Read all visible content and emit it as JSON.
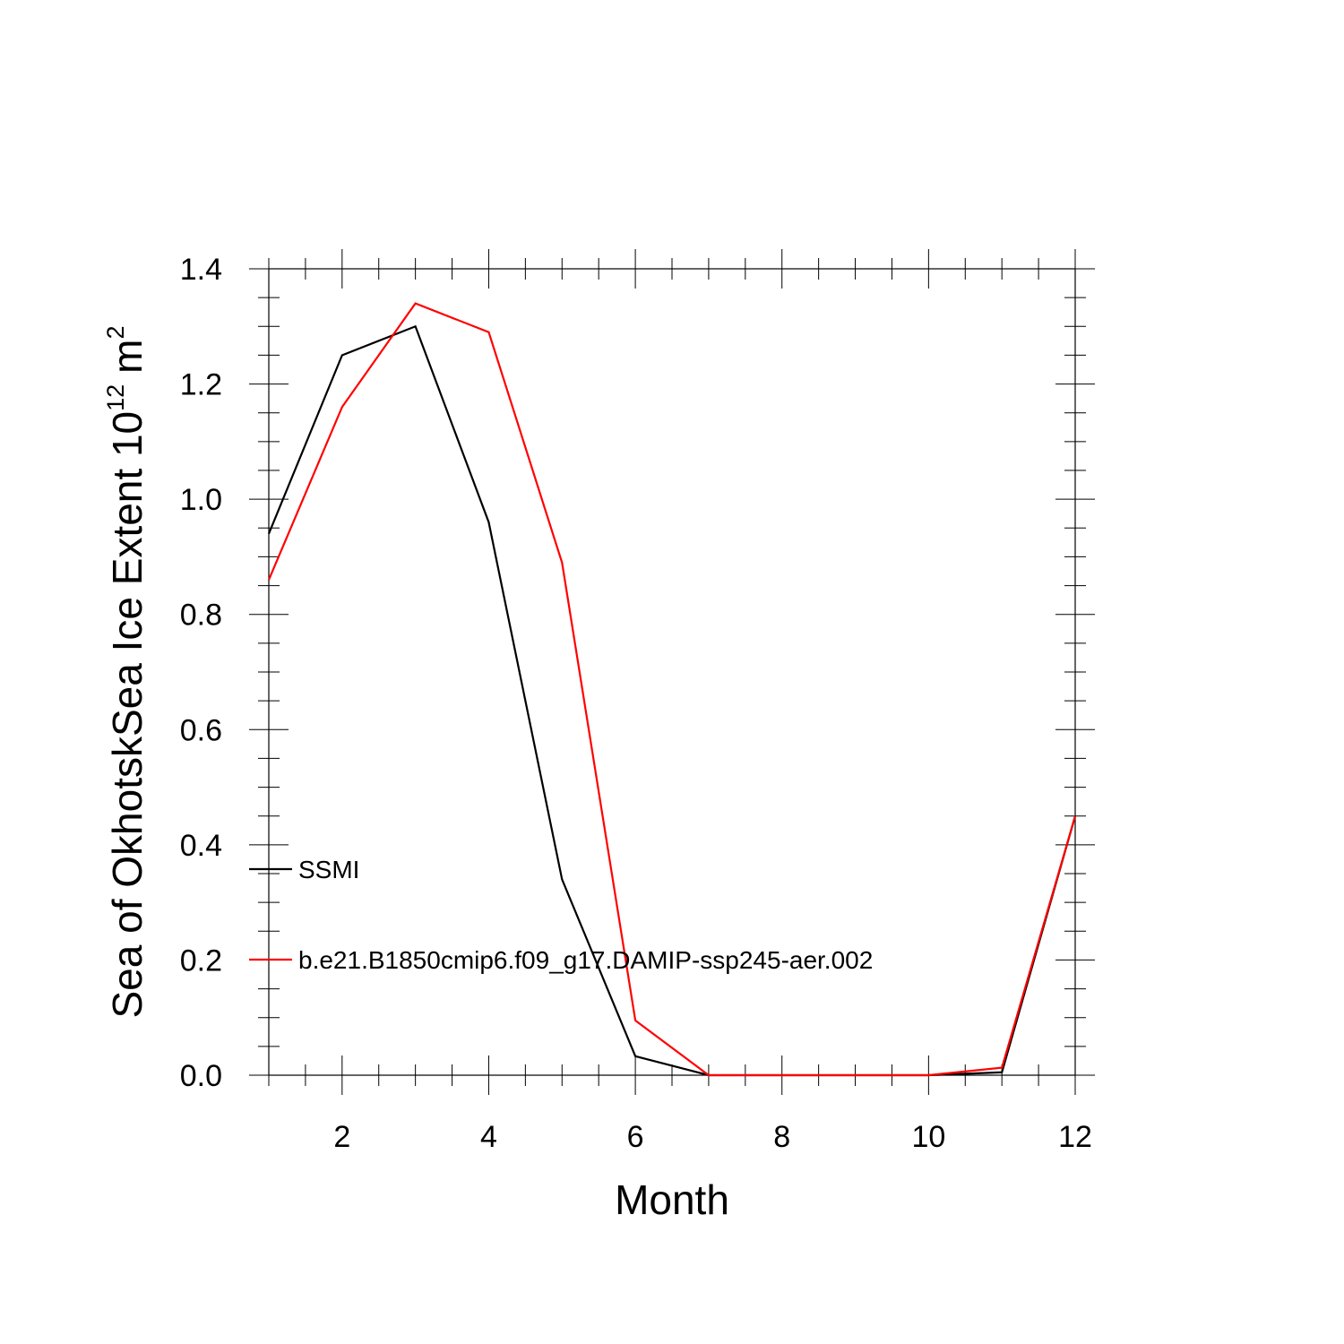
{
  "chart_data": {
    "type": "line",
    "title": "",
    "xlabel": "Month",
    "ylabel": "Sea of OkhotskSea Ice Extent 10",
    "ylabel_superscript": "12",
    "ylabel_unit": "m",
    "ylabel_unit_superscript": "2",
    "xlim": [
      1,
      12
    ],
    "ylim": [
      0,
      1.4
    ],
    "xticks": [
      2,
      4,
      6,
      8,
      10,
      12
    ],
    "xtick_labels": [
      "2",
      "4",
      "6",
      "8",
      "10",
      "12"
    ],
    "yticks": [
      0,
      0.2,
      0.4,
      0.6,
      0.8,
      1.0,
      1.2,
      1.4
    ],
    "ytick_labels": [
      "0.0",
      "0.2",
      "0.4",
      "0.6",
      "0.8",
      "1.0",
      "1.2",
      "1.4"
    ],
    "grid": false,
    "legend_position": "inside-left",
    "x": [
      1,
      2,
      3,
      4,
      5,
      6,
      7,
      8,
      9,
      10,
      11,
      12
    ],
    "series": [
      {
        "name": "SSMI",
        "color": "#000000",
        "values": [
          0.94,
          1.25,
          1.3,
          0.96,
          0.34,
          0.033,
          0.0,
          0.0,
          0.0,
          0.0,
          0.005,
          0.45
        ]
      },
      {
        "name": "b.e21.B1850cmip6.f09_g17.DAMIP-ssp245-aer.002",
        "color": "#ff0000",
        "values": [
          0.86,
          1.16,
          1.34,
          1.29,
          0.89,
          0.095,
          0.0,
          0.0,
          0.0,
          0.0,
          0.013,
          0.45
        ]
      }
    ]
  }
}
